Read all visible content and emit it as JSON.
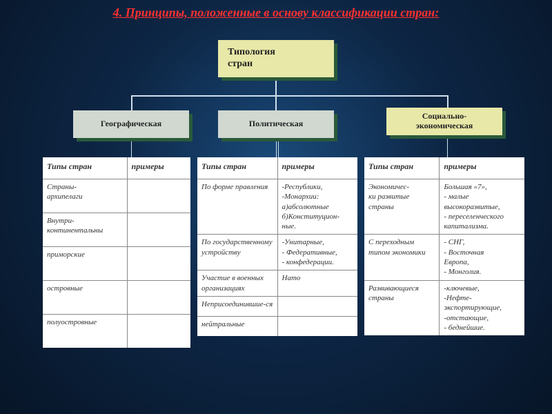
{
  "title": "4. Принципы, положенные в основу классификации стран:",
  "top": {
    "line1": "Типология",
    "line2": "стран"
  },
  "cat": {
    "geo": "Географическая",
    "pol": "Политическая",
    "soc": "Социально-\nэкономическая"
  },
  "headers": {
    "types": "Типы стран",
    "examples": "примеры"
  },
  "geo_rows": [
    {
      "t": "Страны-\nархипелаги",
      "e": ""
    },
    {
      "t": "Внутри-\nконтинентальны",
      "e": ""
    },
    {
      "t": "приморские",
      "e": ""
    },
    {
      "t": "островные",
      "e": ""
    },
    {
      "t": "полуостровные",
      "e": ""
    }
  ],
  "pol_rows": [
    {
      "t": "По форме правления",
      "e": "-Республики,\n-Монархии:\nа)абсолютные\nб)Конституцион-\n  ные."
    },
    {
      "t": "По государственному устройству",
      "e": "-Унитарные,\n- Федеративные,\n- конфедерации."
    },
    {
      "t": "Участие в военных организациях",
      "e": "Нато"
    },
    {
      "t": "Неприсоединившие-ся",
      "e": ""
    },
    {
      "t": "нейтральные",
      "e": ""
    }
  ],
  "soc_rows": [
    {
      "t": "Экономичес-\nки развитые\nстраны",
      "e": "Большая «7»,\n- малые\n  высокоразвитые,\n- переселенческого\n  капитализма."
    },
    {
      "t": "С переходным типом экономики",
      "e": "- СНГ,\n- Восточная\n  Европа,\n- Монголия."
    },
    {
      "t": "Развивающиеся страны",
      "e": "-ключевые,\n-Нефте-\n  экспортирующие,\n-отстающие,\n- беднейшие."
    }
  ],
  "colors": {
    "title": "#ff3030",
    "box_olive": "#e8e8a8",
    "box_sage": "#d0d8d0",
    "shadow": "#2a5a3a",
    "connector": "#cfe0ef"
  }
}
